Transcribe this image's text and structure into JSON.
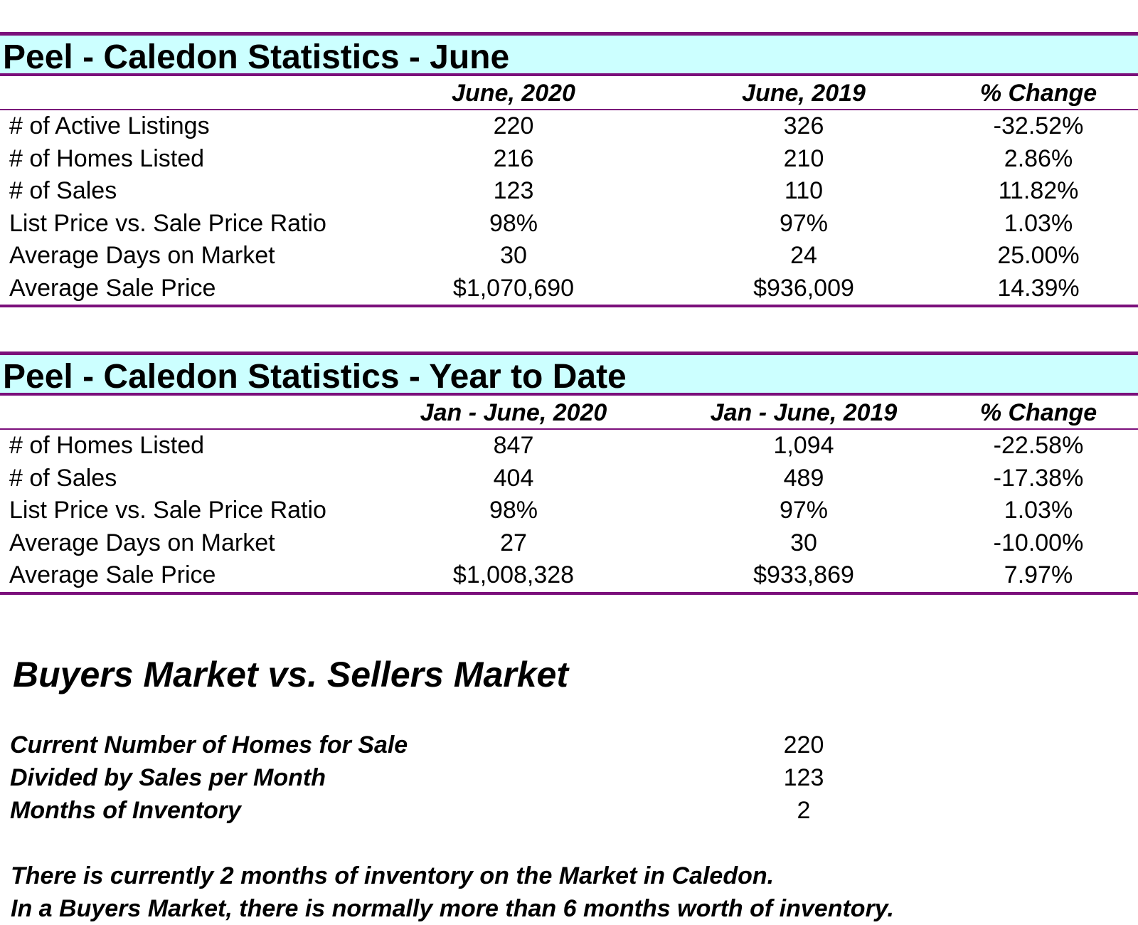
{
  "monthly": {
    "title": "Peel - Caledon Statistics - June",
    "headers": [
      "June, 2020",
      "June, 2019",
      "% Change"
    ],
    "rows": [
      {
        "label": "# of Active Listings",
        "current": "220",
        "previous": "326",
        "change": "-32.52%"
      },
      {
        "label": "# of Homes Listed",
        "current": "216",
        "previous": "210",
        "change": "2.86%"
      },
      {
        "label": "# of Sales",
        "current": "123",
        "previous": "110",
        "change": "11.82%"
      },
      {
        "label": "List Price vs. Sale Price Ratio",
        "current": "98%",
        "previous": "97%",
        "change": "1.03%"
      },
      {
        "label": "Average Days on Market",
        "current": "30",
        "previous": "24",
        "change": "25.00%"
      },
      {
        "label": "Average Sale Price",
        "current": "$1,070,690",
        "previous": "$936,009",
        "change": "14.39%"
      }
    ]
  },
  "ytd": {
    "title": "Peel - Caledon Statistics - Year to Date",
    "headers": [
      "Jan - June, 2020",
      "Jan - June, 2019",
      "% Change"
    ],
    "rows": [
      {
        "label": "# of Homes Listed",
        "current": "847",
        "previous": "1,094",
        "change": "-22.58%"
      },
      {
        "label": "# of Sales",
        "current": "404",
        "previous": "489",
        "change": "-17.38%"
      },
      {
        "label": "List Price vs. Sale Price Ratio",
        "current": "98%",
        "previous": "97%",
        "change": "1.03%"
      },
      {
        "label": "Average Days on Market",
        "current": "27",
        "previous": "30",
        "change": "-10.00%"
      },
      {
        "label": "Average Sale Price",
        "current": "$1,008,328",
        "previous": "$933,869",
        "change": "7.97%"
      }
    ]
  },
  "market": {
    "title": "Buyers Market vs. Sellers Market",
    "inventory": [
      {
        "label": "Current Number of Homes for Sale",
        "value": "220"
      },
      {
        "label": "Divided by Sales per Month",
        "value": "123"
      },
      {
        "label": "Months of Inventory",
        "value": "2"
      }
    ],
    "notes": [
      "There is currently 2 months of inventory on the Market in Caledon.",
      "In a Buyers Market, there is normally more than 6 months worth of inventory."
    ]
  },
  "colors": {
    "title_background": "#ccffff",
    "rule": "#7b0f7b"
  }
}
